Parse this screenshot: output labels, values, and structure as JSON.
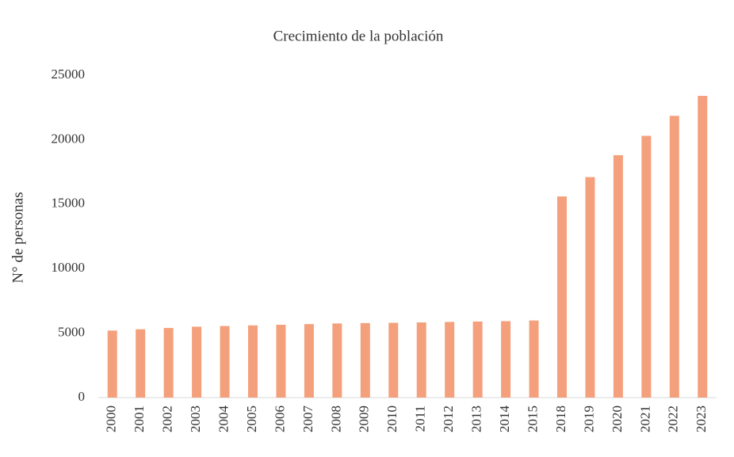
{
  "chart_data": {
    "type": "bar",
    "title": "Crecimiento de la población",
    "ylabel": "N° de personas",
    "categories": [
      "2000",
      "2001",
      "2002",
      "2003",
      "2004",
      "2005",
      "2006",
      "2007",
      "2008",
      "2009",
      "2010",
      "2011",
      "2012",
      "2013",
      "2014",
      "2015",
      "2018",
      "2019",
      "2020",
      "2021",
      "2022",
      "2023"
    ],
    "values": [
      5200,
      5300,
      5400,
      5500,
      5550,
      5600,
      5650,
      5700,
      5750,
      5780,
      5800,
      5830,
      5870,
      5900,
      5930,
      5980,
      15600,
      17100,
      18800,
      20300,
      21850,
      23400
    ],
    "color": "#f4a07c",
    "ylim": [
      0,
      25000
    ],
    "yticks": [
      0,
      5000,
      10000,
      15000,
      20000,
      25000
    ],
    "grid": false
  }
}
